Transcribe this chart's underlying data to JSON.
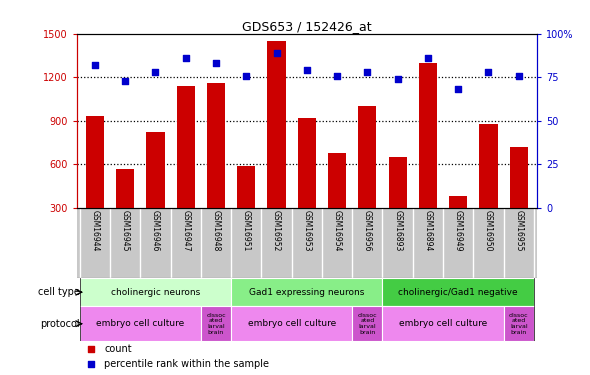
{
  "title": "GDS653 / 152426_at",
  "samples": [
    "GSM16944",
    "GSM16945",
    "GSM16946",
    "GSM16947",
    "GSM16948",
    "GSM16951",
    "GSM16952",
    "GSM16953",
    "GSM16954",
    "GSM16956",
    "GSM16893",
    "GSM16894",
    "GSM16949",
    "GSM16950",
    "GSM16955"
  ],
  "counts": [
    930,
    570,
    820,
    1140,
    1160,
    590,
    1450,
    920,
    680,
    1000,
    650,
    1300,
    380,
    880,
    720
  ],
  "percentiles": [
    82,
    73,
    78,
    86,
    83,
    76,
    89,
    79,
    76,
    78,
    74,
    86,
    68,
    78,
    76
  ],
  "ylim_left": [
    300,
    1500
  ],
  "ylim_right": [
    0,
    100
  ],
  "yticks_left": [
    300,
    600,
    900,
    1200,
    1500
  ],
  "yticks_right": [
    0,
    25,
    50,
    75,
    100
  ],
  "bar_color": "#cc0000",
  "dot_color": "#0000cc",
  "cell_type_groups": [
    {
      "label": "cholinergic neurons",
      "start": 0,
      "end": 5,
      "color": "#ccffcc"
    },
    {
      "label": "Gad1 expressing neurons",
      "start": 5,
      "end": 10,
      "color": "#88ee88"
    },
    {
      "label": "cholinergic/Gad1 negative",
      "start": 10,
      "end": 15,
      "color": "#44cc44"
    }
  ],
  "protocol_groups": [
    {
      "label": "embryo cell culture",
      "start": 0,
      "end": 4,
      "color": "#ee88ee"
    },
    {
      "label": "dissoc\nated\nlarval\nbrain",
      "start": 4,
      "end": 5,
      "color": "#cc55cc"
    },
    {
      "label": "embryo cell culture",
      "start": 5,
      "end": 9,
      "color": "#ee88ee"
    },
    {
      "label": "dissoc\nated\nlarval\nbrain",
      "start": 9,
      "end": 10,
      "color": "#cc55cc"
    },
    {
      "label": "embryo cell culture",
      "start": 10,
      "end": 14,
      "color": "#ee88ee"
    },
    {
      "label": "dissoc\nated\nlarval\nbrain",
      "start": 14,
      "end": 15,
      "color": "#cc55cc"
    }
  ],
  "grid_vals": [
    600,
    900,
    1200
  ],
  "bar_width": 0.6,
  "xlim": [
    -0.6,
    14.6
  ]
}
